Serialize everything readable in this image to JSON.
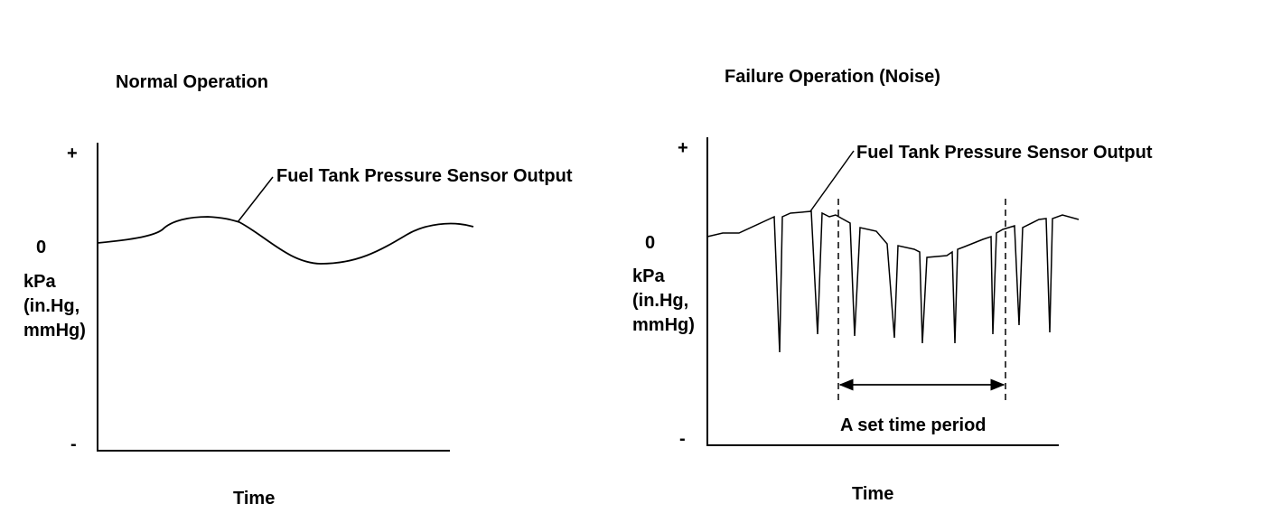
{
  "left_panel": {
    "title": "Normal Operation",
    "plus": "+",
    "zero": "0",
    "minus": "-",
    "unit_line1": "kPa",
    "unit_line2": "(in.Hg,",
    "unit_line3": "mmHg)",
    "curve_label": "Fuel Tank Pressure Sensor Output",
    "x_label": "Time"
  },
  "right_panel": {
    "title": "Failure Operation (Noise)",
    "plus": "+",
    "zero": "0",
    "minus": "-",
    "unit_line1": "kPa",
    "unit_line2": "(in.Hg,",
    "unit_line3": "mmHg)",
    "curve_label": "Fuel Tank Pressure Sensor Output",
    "period_label": "A set time period",
    "x_label": "Time"
  }
}
